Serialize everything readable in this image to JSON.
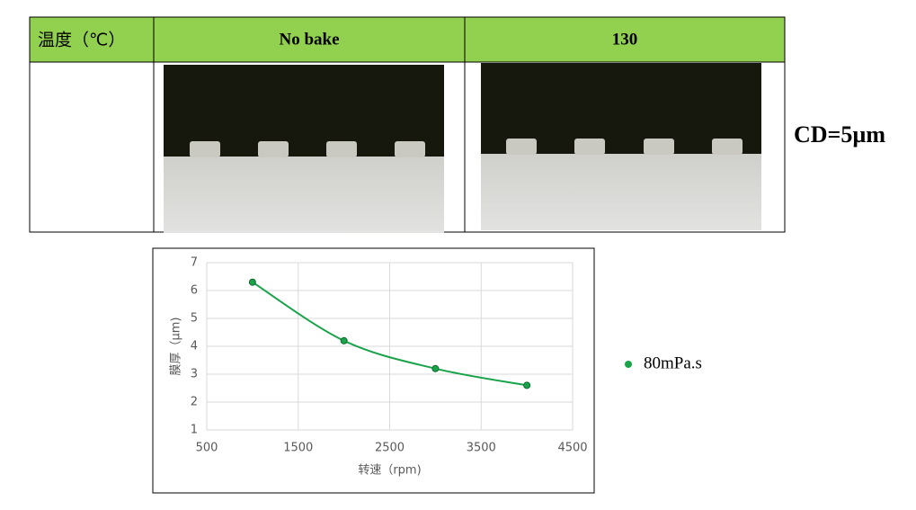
{
  "table": {
    "header": [
      "温度（℃）",
      "No bake",
      "130"
    ]
  },
  "annotation": "CD=5µm",
  "chart_data": {
    "type": "line",
    "xlabel": "转速（rpm)",
    "ylabel": "膜厚（μm)",
    "x": [
      1000,
      2000,
      3000,
      4000
    ],
    "series": [
      {
        "name": "80mPa.s",
        "color": "#1aa34a",
        "values": [
          6.3,
          4.2,
          3.2,
          2.6
        ]
      }
    ],
    "xlim": [
      500,
      4500
    ],
    "xticks": [
      500,
      1500,
      2500,
      3500,
      4500
    ],
    "ylim": [
      1,
      7
    ],
    "yticks": [
      1,
      2,
      3,
      4,
      5,
      6,
      7
    ],
    "grid": true,
    "smooth": true
  }
}
